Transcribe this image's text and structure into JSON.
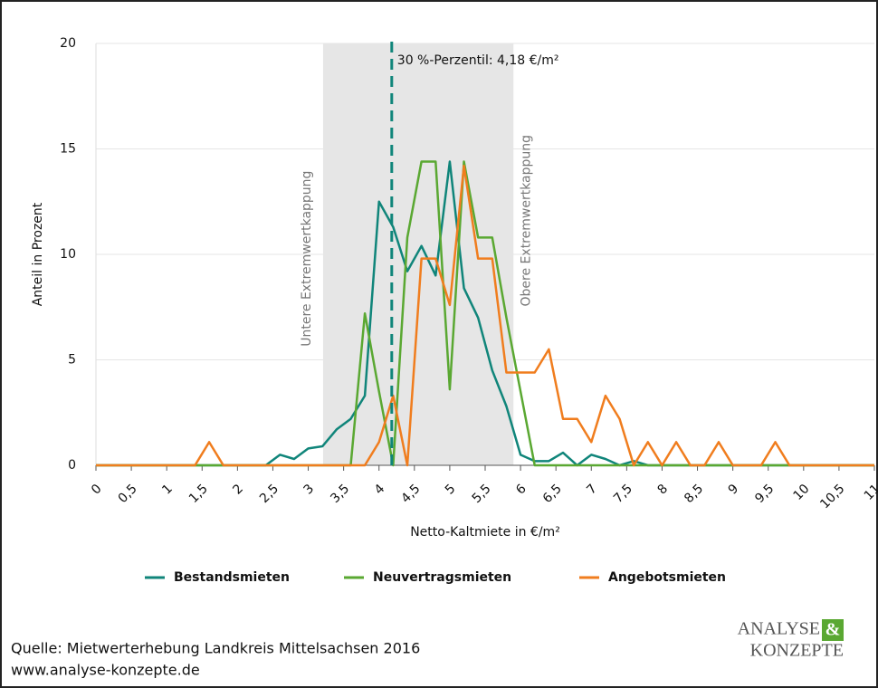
{
  "chart_data": {
    "type": "line",
    "xlabel": "Netto-Kaltmiete in €/m²",
    "ylabel": "Anteil in Prozent",
    "x": [
      0,
      0.2,
      0.4,
      0.6,
      0.8,
      1,
      1.2,
      1.4,
      1.6,
      1.8,
      2,
      2.2,
      2.4,
      2.6,
      2.8,
      3,
      3.2,
      3.4,
      3.6,
      3.8,
      4,
      4.2,
      4.4,
      4.6,
      4.8,
      5,
      5.2,
      5.4,
      5.6,
      5.8,
      6,
      6.2,
      6.4,
      6.6,
      6.8,
      7,
      7.2,
      7.4,
      7.6,
      7.8,
      8,
      8.2,
      8.4,
      8.6,
      8.8,
      9,
      9.2,
      9.4,
      9.6,
      9.8,
      10,
      10.2,
      10.4,
      10.6,
      10.8,
      11
    ],
    "series": [
      {
        "name": "Bestandsmieten",
        "color": "#10857a",
        "values": [
          0,
          0,
          0,
          0,
          0,
          0,
          0,
          0,
          0,
          0,
          0,
          0,
          0,
          0.5,
          0.3,
          0.8,
          0.9,
          1.7,
          2.2,
          3.3,
          12.5,
          11.3,
          9.2,
          10.4,
          9.0,
          14.4,
          8.4,
          7.0,
          4.5,
          2.8,
          0.5,
          0.2,
          0.2,
          0.6,
          0,
          0.5,
          0.3,
          0,
          0.2,
          0,
          0,
          0,
          0,
          0,
          0,
          0,
          0,
          0,
          0,
          0,
          0,
          0,
          0,
          0,
          0,
          0
        ]
      },
      {
        "name": "Neuvertragsmieten",
        "color": "#5aa832",
        "values": [
          0,
          0,
          0,
          0,
          0,
          0,
          0,
          0,
          0,
          0,
          0,
          0,
          0,
          0,
          0,
          0,
          0,
          0,
          0,
          7.2,
          3.5,
          0,
          10.8,
          14.4,
          14.4,
          3.6,
          14.4,
          10.8,
          10.8,
          7.0,
          3.5,
          0,
          0,
          0,
          0,
          0,
          0,
          0,
          0,
          0,
          0,
          0,
          0,
          0,
          0,
          0,
          0,
          0,
          0,
          0,
          0,
          0,
          0,
          0,
          0,
          0
        ]
      },
      {
        "name": "Angebotsmieten",
        "color": "#f07d1e",
        "values": [
          0,
          0,
          0,
          0,
          0,
          0,
          0,
          0,
          1.1,
          0,
          0,
          0,
          0,
          0,
          0,
          0,
          0,
          0,
          0,
          0,
          1.1,
          3.3,
          0,
          9.8,
          9.8,
          7.6,
          14.2,
          9.8,
          9.8,
          4.4,
          4.4,
          4.4,
          5.5,
          2.2,
          2.2,
          1.1,
          3.3,
          2.2,
          0,
          1.1,
          0,
          1.1,
          0,
          0,
          1.1,
          0,
          0,
          0,
          1.1,
          0,
          0,
          0,
          0,
          0,
          0,
          0
        ]
      }
    ],
    "xlim": [
      0,
      11
    ],
    "ylim": [
      0,
      20
    ],
    "xticks": [
      0,
      {
        "value": 0.5,
        "label": "0,5"
      },
      1,
      {
        "value": 1.5,
        "label": "1,5"
      },
      2,
      {
        "value": 2.5,
        "label": "2,5"
      },
      3,
      {
        "value": 3.5,
        "label": "3,5"
      },
      4,
      {
        "value": 4.5,
        "label": "4,5"
      },
      5,
      {
        "value": 5.5,
        "label": "5,5"
      },
      6,
      {
        "value": 6.5,
        "label": "6,5"
      },
      7,
      {
        "value": 7.5,
        "label": "7,5"
      },
      8,
      {
        "value": 8.5,
        "label": "8,5"
      },
      9,
      {
        "value": 9.5,
        "label": "9,5"
      },
      10,
      {
        "value": 10.5,
        "label": "10,5"
      },
      11
    ],
    "yticks": [
      0,
      5,
      10,
      15,
      20
    ],
    "grid": true,
    "shaded_range": {
      "x": [
        3.21,
        5.9
      ],
      "color": "#e6e6e6",
      "lower_label": "Untere Extremwertkappung",
      "upper_label": "Obere Extremwertkappung"
    },
    "percentile": {
      "x": 4.18,
      "color": "#10857a",
      "label": "30 %-Perzentil: 4,18 €/m²"
    },
    "source": [
      "Quelle: Mietwerterhebung Landkreis Mittelsachsen 2016",
      "www.analyse-konzepte.de"
    ],
    "logo": [
      "ANALYSE",
      "&",
      "KONZEPTE"
    ]
  }
}
